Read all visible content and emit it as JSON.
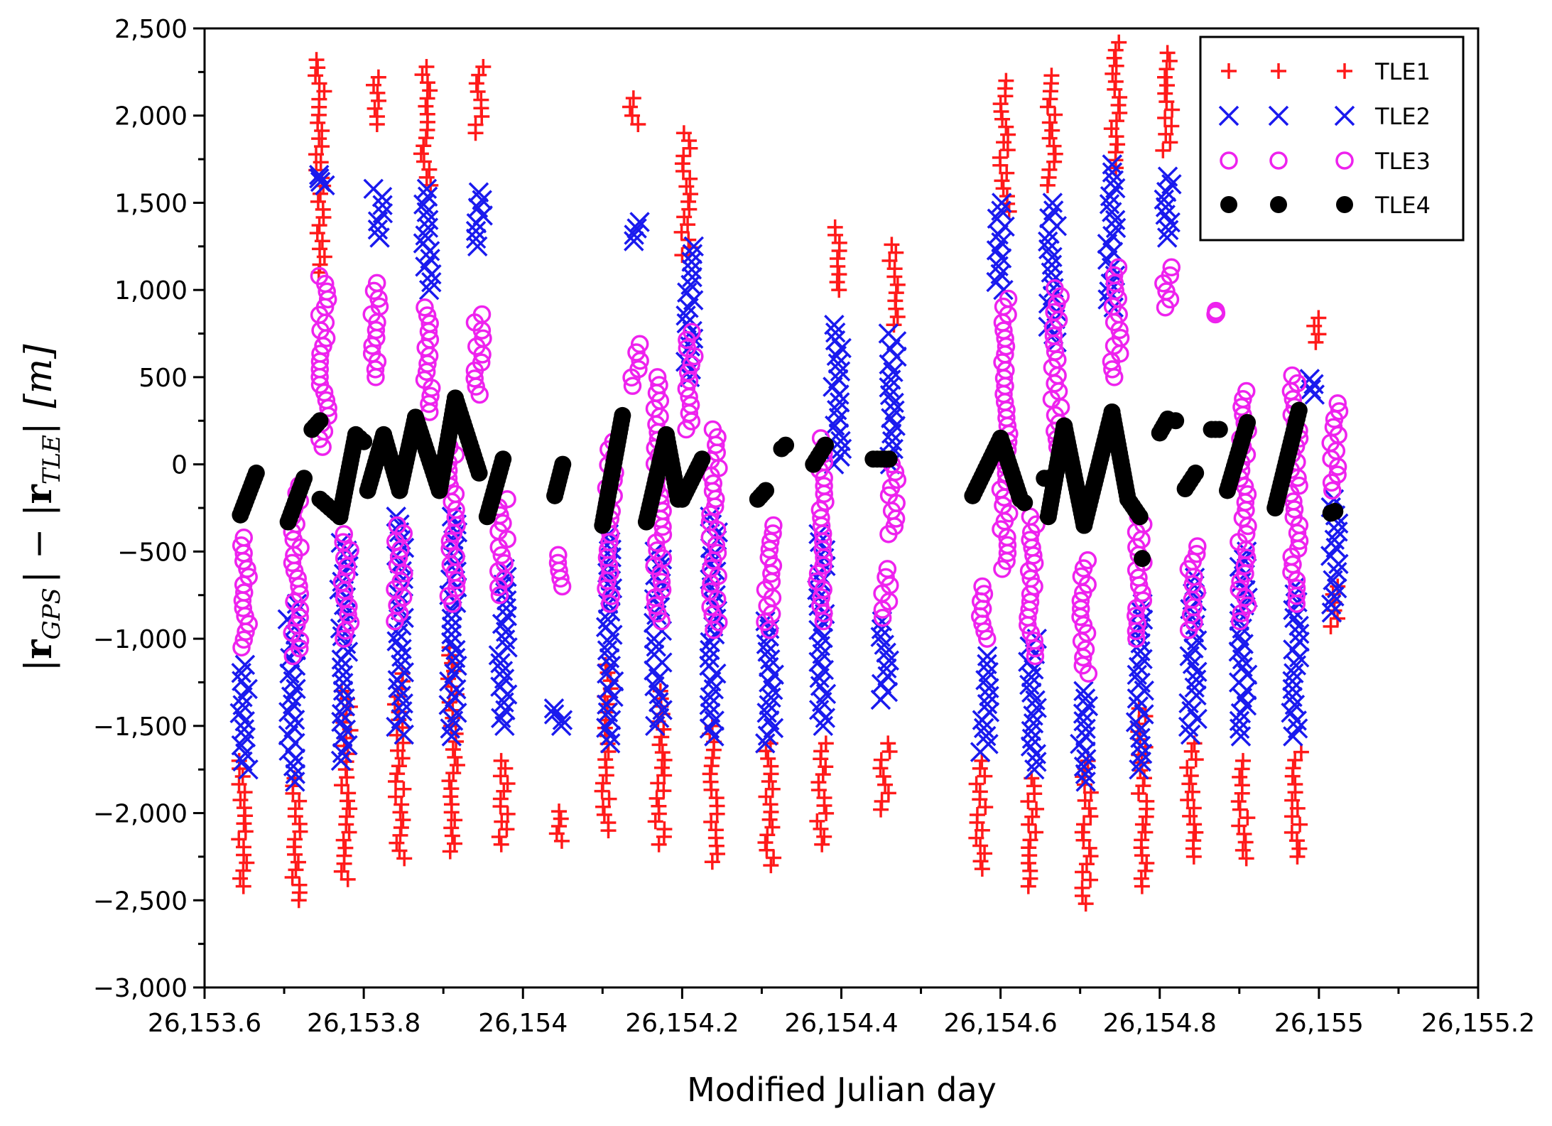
{
  "chart_data": {
    "type": "scatter",
    "title": "",
    "xlabel": "Modified Julian day",
    "ylabel": "|r_GPS| − |r_TLE| [m]",
    "ylabel_parts": {
      "bar_left": "|",
      "r1": "r",
      "sub1": "GPS",
      "bar_mid": "| − |",
      "r2": "r",
      "sub2": "TLE",
      "bar_right": "|",
      "unit": "[m]"
    },
    "xlim": [
      26153.6,
      26155.2
    ],
    "ylim": [
      -3000,
      2500
    ],
    "x_ticks": [
      26153.6,
      26153.8,
      26154.0,
      26154.2,
      26154.4,
      26154.6,
      26154.8,
      26155.0,
      26155.2
    ],
    "x_tick_labels": [
      "26,153.6",
      "26,153.8",
      "26,154",
      "26,154.2",
      "26,154.4",
      "26,154.6",
      "26,154.8",
      "26,155",
      "26,155.2"
    ],
    "y_ticks": [
      -3000,
      -2500,
      -2000,
      -1500,
      -1000,
      -500,
      0,
      500,
      1000,
      1500,
      2000,
      2500
    ],
    "y_tick_labels": [
      "−3,000",
      "−2,500",
      "−2,000",
      "−1,500",
      "−1,000",
      "−500",
      "0",
      "500",
      "1,000",
      "1,500",
      "2,000",
      "2,500"
    ],
    "legend_position": "top-right",
    "series": [
      {
        "name": "TLE1",
        "marker": "plus",
        "color": "#ff1a1a",
        "clusters": [
          {
            "x": 26153.647,
            "ymin": -2420,
            "ymax": -1700
          },
          {
            "x": 26153.715,
            "ymin": -2500,
            "ymax": -1800
          },
          {
            "x": 26153.745,
            "ymin": 1100,
            "ymax": 2320
          },
          {
            "x": 26153.778,
            "ymin": -2380,
            "ymax": -1300
          },
          {
            "x": 26153.815,
            "ymin": 1950,
            "ymax": 2220
          },
          {
            "x": 26153.845,
            "ymin": -2260,
            "ymax": -1200
          },
          {
            "x": 26153.878,
            "ymin": 1600,
            "ymax": 2280
          },
          {
            "x": 26153.912,
            "ymin": -2220,
            "ymax": -1050
          },
          {
            "x": 26153.945,
            "ymin": 1900,
            "ymax": 2280
          },
          {
            "x": 26153.975,
            "ymin": -2180,
            "ymax": -1700
          },
          {
            "x": 26154.045,
            "ymin": -2160,
            "ymax": -1990
          },
          {
            "x": 26154.105,
            "ymin": -2100,
            "ymax": -1150
          },
          {
            "x": 26154.14,
            "ymin": 1950,
            "ymax": 2100
          },
          {
            "x": 26154.172,
            "ymin": -2180,
            "ymax": -1300
          },
          {
            "x": 26154.205,
            "ymin": 1200,
            "ymax": 1900
          },
          {
            "x": 26154.24,
            "ymin": -2280,
            "ymax": -1500
          },
          {
            "x": 26154.31,
            "ymin": -2300,
            "ymax": -1600
          },
          {
            "x": 26154.375,
            "ymin": -2180,
            "ymax": -1600
          },
          {
            "x": 26154.395,
            "ymin": 1000,
            "ymax": 1360
          },
          {
            "x": 26154.455,
            "ymin": -1980,
            "ymax": -1600
          },
          {
            "x": 26154.465,
            "ymin": 800,
            "ymax": 1260
          },
          {
            "x": 26154.575,
            "ymin": -2320,
            "ymax": -1700
          },
          {
            "x": 26154.605,
            "ymin": 1450,
            "ymax": 2200
          },
          {
            "x": 26154.64,
            "ymin": -2420,
            "ymax": -1800
          },
          {
            "x": 26154.665,
            "ymin": 1600,
            "ymax": 2230
          },
          {
            "x": 26154.708,
            "ymin": -2520,
            "ymax": -1700
          },
          {
            "x": 26154.745,
            "ymin": 1700,
            "ymax": 2420
          },
          {
            "x": 26154.778,
            "ymin": -2420,
            "ymax": -1400
          },
          {
            "x": 26154.81,
            "ymin": 1800,
            "ymax": 2360
          },
          {
            "x": 26154.84,
            "ymin": -2250,
            "ymax": -1600
          },
          {
            "x": 26154.905,
            "ymin": -2260,
            "ymax": -1700
          },
          {
            "x": 26154.972,
            "ymin": -2250,
            "ymax": -1650
          },
          {
            "x": 26154.995,
            "ymin": 700,
            "ymax": 840
          },
          {
            "x": 26155.02,
            "ymin": -930,
            "ymax": -700
          }
        ]
      },
      {
        "name": "TLE2",
        "marker": "cross",
        "color": "#1a1aee",
        "clusters": [
          {
            "x": 26153.65,
            "ymin": -1750,
            "ymax": -1150
          },
          {
            "x": 26153.71,
            "ymin": -1820,
            "ymax": -800
          },
          {
            "x": 26153.748,
            "ymin": 1600,
            "ymax": 1660
          },
          {
            "x": 26153.775,
            "ymin": -1700,
            "ymax": -450
          },
          {
            "x": 26153.818,
            "ymin": 1300,
            "ymax": 1580
          },
          {
            "x": 26153.845,
            "ymin": -1550,
            "ymax": -300
          },
          {
            "x": 26153.88,
            "ymin": 1000,
            "ymax": 1580
          },
          {
            "x": 26153.912,
            "ymin": -1560,
            "ymax": -300
          },
          {
            "x": 26153.946,
            "ymin": 1250,
            "ymax": 1560
          },
          {
            "x": 26153.975,
            "ymin": -1500,
            "ymax": -600
          },
          {
            "x": 26154.045,
            "ymin": -1500,
            "ymax": -1400
          },
          {
            "x": 26154.11,
            "ymin": -1600,
            "ymax": -400
          },
          {
            "x": 26154.142,
            "ymin": 1280,
            "ymax": 1390
          },
          {
            "x": 26154.17,
            "ymin": -1500,
            "ymax": -500
          },
          {
            "x": 26154.21,
            "ymin": 500,
            "ymax": 1250
          },
          {
            "x": 26154.24,
            "ymin": -1560,
            "ymax": -300
          },
          {
            "x": 26154.31,
            "ymin": -1600,
            "ymax": -900
          },
          {
            "x": 26154.375,
            "ymin": -1500,
            "ymax": -400
          },
          {
            "x": 26154.395,
            "ymin": 0,
            "ymax": 800
          },
          {
            "x": 26154.455,
            "ymin": -1350,
            "ymax": -900
          },
          {
            "x": 26154.465,
            "ymin": 0,
            "ymax": 750
          },
          {
            "x": 26154.58,
            "ymin": -1650,
            "ymax": -1100
          },
          {
            "x": 26154.6,
            "ymin": 1000,
            "ymax": 1500
          },
          {
            "x": 26154.64,
            "ymin": -1750,
            "ymax": -1000
          },
          {
            "x": 26154.665,
            "ymin": 700,
            "ymax": 1500
          },
          {
            "x": 26154.705,
            "ymin": -1820,
            "ymax": -1300
          },
          {
            "x": 26154.74,
            "ymin": 900,
            "ymax": 1720
          },
          {
            "x": 26154.775,
            "ymin": -1750,
            "ymax": -800
          },
          {
            "x": 26154.81,
            "ymin": 1300,
            "ymax": 1650
          },
          {
            "x": 26154.842,
            "ymin": -1550,
            "ymax": -650
          },
          {
            "x": 26154.905,
            "ymin": -1560,
            "ymax": -500
          },
          {
            "x": 26154.97,
            "ymin": -1560,
            "ymax": -700
          },
          {
            "x": 26154.99,
            "ymin": 400,
            "ymax": 490
          },
          {
            "x": 26155.02,
            "ymin": -850,
            "ymax": -200
          }
        ]
      },
      {
        "name": "TLE3",
        "marker": "circle",
        "color": "#ee22ee",
        "clusters": [
          {
            "x": 26153.65,
            "ymin": -1050,
            "ymax": -420
          },
          {
            "x": 26153.715,
            "ymin": -1100,
            "ymax": -120
          },
          {
            "x": 26153.75,
            "ymin": 100,
            "ymax": 1080
          },
          {
            "x": 26153.778,
            "ymin": -1000,
            "ymax": -400
          },
          {
            "x": 26153.815,
            "ymin": 500,
            "ymax": 1040
          },
          {
            "x": 26153.845,
            "ymin": -900,
            "ymax": -350
          },
          {
            "x": 26153.88,
            "ymin": 300,
            "ymax": 900
          },
          {
            "x": 26153.912,
            "ymin": -800,
            "ymax": 100
          },
          {
            "x": 26153.945,
            "ymin": 400,
            "ymax": 860
          },
          {
            "x": 26153.975,
            "ymin": -750,
            "ymax": -200
          },
          {
            "x": 26154.045,
            "ymin": -700,
            "ymax": -520
          },
          {
            "x": 26154.11,
            "ymin": -800,
            "ymax": 130
          },
          {
            "x": 26154.142,
            "ymin": 450,
            "ymax": 690
          },
          {
            "x": 26154.17,
            "ymin": -900,
            "ymax": 500
          },
          {
            "x": 26154.21,
            "ymin": 200,
            "ymax": 760
          },
          {
            "x": 26154.24,
            "ymin": -950,
            "ymax": 200
          },
          {
            "x": 26154.31,
            "ymin": -950,
            "ymax": -350
          },
          {
            "x": 26154.375,
            "ymin": -900,
            "ymax": 150
          },
          {
            "x": 26154.455,
            "ymin": -880,
            "ymax": -600
          },
          {
            "x": 26154.465,
            "ymin": -400,
            "ymax": 0
          },
          {
            "x": 26154.58,
            "ymin": -1000,
            "ymax": -700
          },
          {
            "x": 26154.605,
            "ymin": -600,
            "ymax": 950
          },
          {
            "x": 26154.64,
            "ymin": -1100,
            "ymax": -300
          },
          {
            "x": 26154.67,
            "ymin": 100,
            "ymax": 1010
          },
          {
            "x": 26154.705,
            "ymin": -1200,
            "ymax": -550
          },
          {
            "x": 26154.745,
            "ymin": 500,
            "ymax": 1130
          },
          {
            "x": 26154.775,
            "ymin": -1000,
            "ymax": -300
          },
          {
            "x": 26154.81,
            "ymin": 900,
            "ymax": 1130
          },
          {
            "x": 26154.842,
            "ymin": -950,
            "ymax": -470
          },
          {
            "x": 26154.875,
            "ymin": 860,
            "ymax": 880
          },
          {
            "x": 26154.905,
            "ymin": -900,
            "ymax": 420
          },
          {
            "x": 26154.97,
            "ymin": -800,
            "ymax": 510
          },
          {
            "x": 26155.02,
            "ymin": -150,
            "ymax": 350
          }
        ]
      },
      {
        "name": "TLE4",
        "marker": "dot",
        "color": "#000000",
        "segments": [
          {
            "x0": 26153.645,
            "x1": 26153.665,
            "y0": -290,
            "y1": -50
          },
          {
            "x0": 26153.705,
            "x1": 26153.725,
            "y0": -330,
            "y1": -80
          },
          {
            "x0": 26153.735,
            "x1": 26153.745,
            "y0": 200,
            "y1": 250
          },
          {
            "x0": 26153.745,
            "x1": 26153.77,
            "y0": -200,
            "y1": -300
          },
          {
            "x0": 26153.77,
            "x1": 26153.79,
            "y0": -300,
            "y1": 170
          },
          {
            "x0": 26153.79,
            "x1": 26153.8,
            "y0": 170,
            "y1": 130
          },
          {
            "x0": 26153.805,
            "x1": 26153.825,
            "y0": -150,
            "y1": 170
          },
          {
            "x0": 26153.825,
            "x1": 26153.845,
            "y0": 170,
            "y1": -150
          },
          {
            "x0": 26153.845,
            "x1": 26153.865,
            "y0": -150,
            "y1": 270
          },
          {
            "x0": 26153.865,
            "x1": 26153.895,
            "y0": 270,
            "y1": -150
          },
          {
            "x0": 26153.895,
            "x1": 26153.915,
            "y0": -150,
            "y1": 380
          },
          {
            "x0": 26153.915,
            "x1": 26153.945,
            "y0": 380,
            "y1": -50
          },
          {
            "x0": 26153.955,
            "x1": 26153.975,
            "y0": -300,
            "y1": 30
          },
          {
            "x0": 26154.04,
            "x1": 26154.05,
            "y0": -180,
            "y1": 0
          },
          {
            "x0": 26154.1,
            "x1": 26154.125,
            "y0": -350,
            "y1": 280
          },
          {
            "x0": 26154.155,
            "x1": 26154.18,
            "y0": -330,
            "y1": 170
          },
          {
            "x0": 26154.18,
            "x1": 26154.195,
            "y0": 170,
            "y1": -200
          },
          {
            "x0": 26154.2,
            "x1": 26154.225,
            "y0": -200,
            "y1": 30
          },
          {
            "x0": 26154.295,
            "x1": 26154.305,
            "y0": -200,
            "y1": -150
          },
          {
            "x0": 26154.325,
            "x1": 26154.33,
            "y0": 90,
            "y1": 110
          },
          {
            "x0": 26154.365,
            "x1": 26154.38,
            "y0": 0,
            "y1": 110
          },
          {
            "x0": 26154.44,
            "x1": 26154.46,
            "y0": 30,
            "y1": 30
          },
          {
            "x0": 26154.565,
            "x1": 26154.6,
            "y0": -180,
            "y1": 150
          },
          {
            "x0": 26154.6,
            "x1": 26154.625,
            "y0": 150,
            "y1": -200
          },
          {
            "x0": 26154.625,
            "x1": 26154.63,
            "y0": -200,
            "y1": -220
          },
          {
            "x0": 26154.655,
            "x1": 26154.66,
            "y0": -80,
            "y1": -80
          },
          {
            "x0": 26154.66,
            "x1": 26154.68,
            "y0": -300,
            "y1": 220
          },
          {
            "x0": 26154.68,
            "x1": 26154.705,
            "y0": 220,
            "y1": -350
          },
          {
            "x0": 26154.705,
            "x1": 26154.74,
            "y0": -350,
            "y1": 300
          },
          {
            "x0": 26154.74,
            "x1": 26154.76,
            "y0": 300,
            "y1": -200
          },
          {
            "x0": 26154.76,
            "x1": 26154.775,
            "y0": -200,
            "y1": -300
          },
          {
            "x0": 26154.8,
            "x1": 26154.81,
            "y0": 180,
            "y1": 260
          },
          {
            "x0": 26154.832,
            "x1": 26154.845,
            "y0": -140,
            "y1": -50
          },
          {
            "x0": 26154.865,
            "x1": 26154.875,
            "y0": 200,
            "y1": 200
          },
          {
            "x0": 26154.885,
            "x1": 26154.91,
            "y0": -150,
            "y1": 240
          },
          {
            "x0": 26154.945,
            "x1": 26154.975,
            "y0": -250,
            "y1": 310
          },
          {
            "x0": 26155.015,
            "x1": 26155.02,
            "y0": -280,
            "y1": -270
          }
        ],
        "points": [
          {
            "x": 26154.778,
            "y": -540
          },
          {
            "x": 26154.82,
            "y": 250
          }
        ]
      }
    ]
  }
}
